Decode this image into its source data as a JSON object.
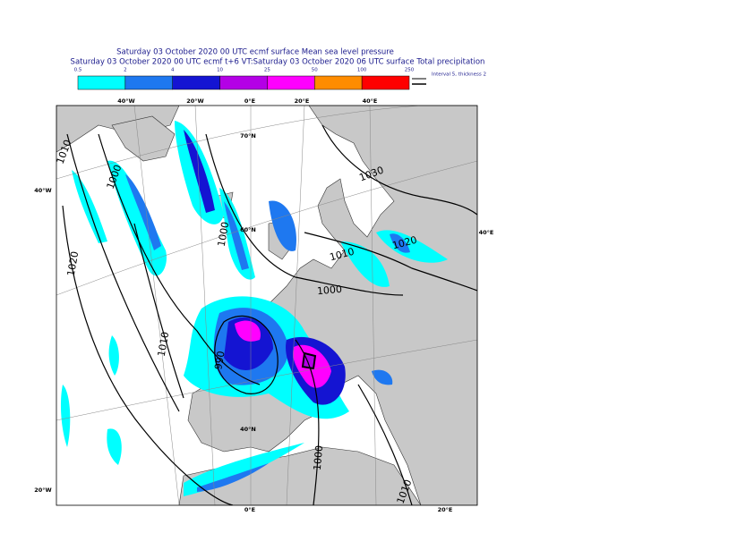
{
  "header": {
    "title": "Saturday 03 October 2020 00 UTC ecmf surface  Mean sea level pressure",
    "subtitle": "Saturday 03 October 2020 00 UTC ecmf t+6 VT:Saturday 03 October 2020 06 UTC surface  Total precipitation"
  },
  "legend": {
    "levels": [
      0.5,
      2,
      4,
      10,
      25,
      50,
      100,
      250
    ],
    "colors": [
      "#00ffff",
      "#1e78f0",
      "#1414d2",
      "#b400e6",
      "#ff00ff",
      "#ff8c00",
      "#ff0000"
    ],
    "contour_note": "Interval 5, thickness 2"
  },
  "map": {
    "top_labels": [
      "40°W",
      "20°W",
      "0°E",
      "20°E",
      "40°E"
    ],
    "lat_labels": [
      "70°N",
      "60°N",
      "40°N"
    ],
    "left_labels": [
      "40°W",
      "20°W"
    ],
    "right_labels": [
      "40°E"
    ],
    "bottom_labels": [
      "0°E",
      "20°E"
    ],
    "contour_labels": [
      "1010",
      "1000",
      "1000",
      "1020",
      "1010",
      "990",
      "1030",
      "1020",
      "1010",
      "1000",
      "1000",
      "1010"
    ]
  }
}
